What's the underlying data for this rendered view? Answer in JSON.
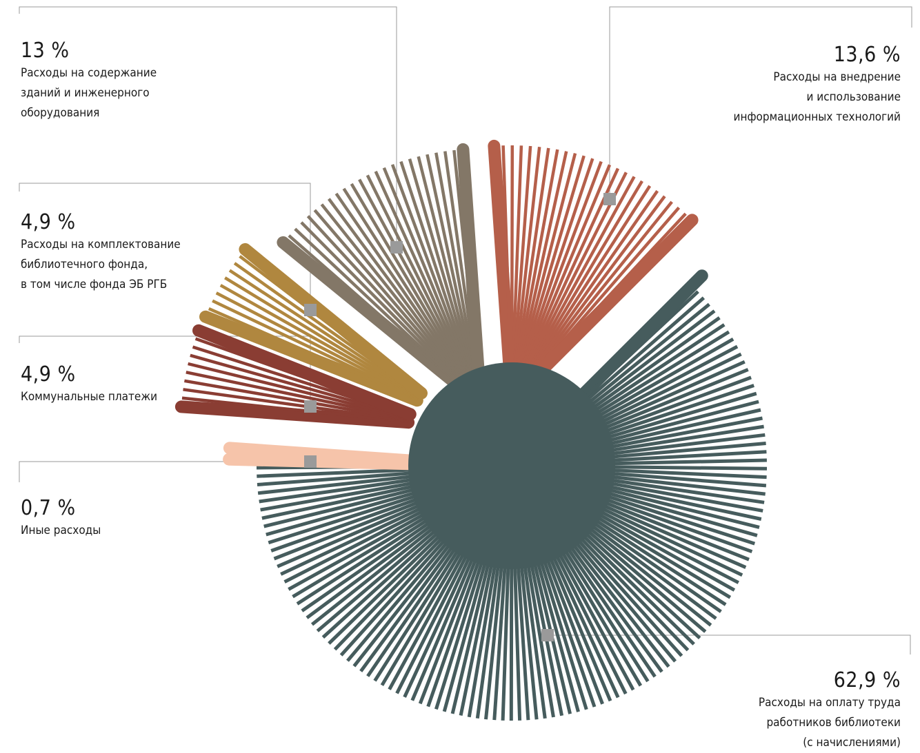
{
  "chart_data": {
    "type": "pie",
    "title": "",
    "slices": [
      {
        "label": "Расходы на оплату труда работников библиотеки (с начислениями)",
        "value": 62.9,
        "value_text": "62,9 %",
        "description": "Расходы на оплату труда\nработников библиотеки\n(с начислениями)",
        "color": "#465c5d"
      },
      {
        "label": "Иные расходы",
        "value": 0.7,
        "value_text": "0,7 %",
        "description": "Иные расходы",
        "color": "#f6c4aa"
      },
      {
        "label": "Коммунальные платежи",
        "value": 4.9,
        "value_text": "4,9 %",
        "description": "Коммунальные платежи",
        "color": "#8a3d33"
      },
      {
        "label": "Расходы на комплектование библиотечного фонда, в том числе фонда ЭБ РГБ",
        "value": 4.9,
        "value_text": "4,9 %",
        "description": "Расходы на комплектование\nбиблиотечного фонда,\nв том числе фонда ЭБ РГБ",
        "color": "#b0873f"
      },
      {
        "label": "Расходы на содержание зданий и инженерного оборудования",
        "value": 13.0,
        "value_text": "13 %",
        "description": "Расходы на содержание\nзданий и инженерного\nоборудования",
        "color": "#837767"
      },
      {
        "label": "Расходы на внедрение и использование информационных технологий",
        "value": 13.6,
        "value_text": "13,6 %",
        "description": "Расходы на внедрение\nи использование\nинформационных технологий",
        "color": "#b55f4a"
      }
    ],
    "marker_color": "#9a9a9a",
    "leader_color": "#9a9a9a"
  }
}
